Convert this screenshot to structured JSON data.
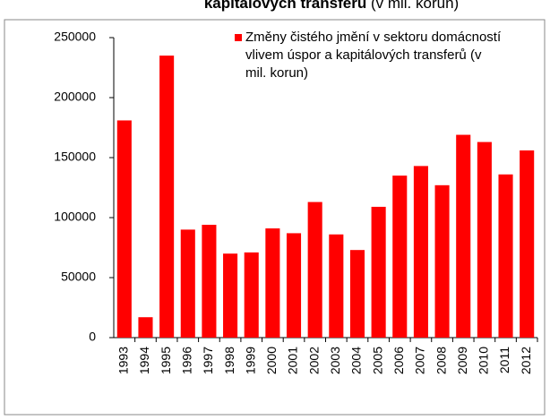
{
  "chart_data": {
    "type": "bar",
    "title": "kapitálových transferů",
    "subtitle": "(v mil. korun)",
    "categories": [
      "1993",
      "1994",
      "1995",
      "1996",
      "1997",
      "1998",
      "1999",
      "2000",
      "2001",
      "2002",
      "2003",
      "2004",
      "2005",
      "2006",
      "2007",
      "2008",
      "2009",
      "2010",
      "2011",
      "2012"
    ],
    "series": [
      {
        "name": "Změny čistého jmění v sektoru domácností vlivem úspor a kapitálových transferů (v mil. korun)",
        "color": "#ff0000",
        "values": [
          181000,
          17000,
          235000,
          90000,
          94000,
          70000,
          71000,
          91000,
          87000,
          113000,
          86000,
          73000,
          109000,
          135000,
          143000,
          127000,
          169000,
          163000,
          136000,
          156000
        ]
      }
    ],
    "ylim": [
      0,
      250000
    ],
    "yticks": [
      0,
      50000,
      100000,
      150000,
      200000,
      250000
    ],
    "grid": false,
    "legend": "top-right"
  }
}
